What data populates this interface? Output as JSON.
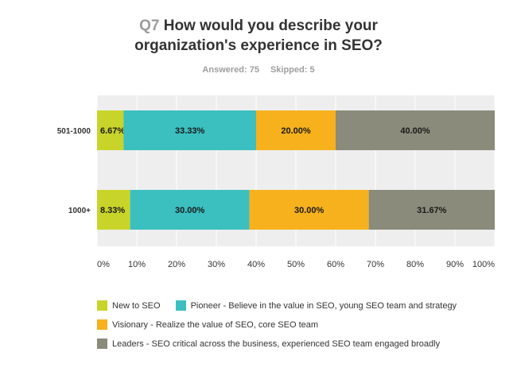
{
  "title": {
    "question_number": "Q7",
    "line1": "How would you describe your",
    "line2": "organization's experience in SEO?"
  },
  "meta": {
    "answered": "Answered: 75",
    "skipped": "Skipped: 5"
  },
  "chart_data": {
    "type": "bar",
    "orientation": "horizontal",
    "stacked": true,
    "categories": [
      "501-1000",
      "1000+"
    ],
    "series": [
      {
        "name": "New to SEO",
        "color": "#c8d42a",
        "values": [
          6.67,
          8.33
        ],
        "labels": [
          "6.67%",
          "8.33%"
        ]
      },
      {
        "name": "Pioneer - Believe in the value in SEO, young SEO team and strategy",
        "color": "#3bbfbf",
        "values": [
          33.33,
          30.0
        ],
        "labels": [
          "33.33%",
          "30.00%"
        ]
      },
      {
        "name": "Visionary - Realize the value of SEO, core SEO team",
        "color": "#f6b11d",
        "values": [
          20.0,
          30.0
        ],
        "labels": [
          "20.00%",
          "30.00%"
        ]
      },
      {
        "name": "Leaders - SEO critical across the business, experienced SEO team engaged broadly",
        "color": "#8a8b7a",
        "values": [
          40.0,
          31.67
        ],
        "labels": [
          "40.00%",
          "31.67%"
        ]
      }
    ],
    "xlim": [
      0,
      100
    ],
    "xticks": [
      "0%",
      "10%",
      "20%",
      "30%",
      "40%",
      "50%",
      "60%",
      "70%",
      "80%",
      "90%",
      "100%"
    ],
    "background": "#eeeeee",
    "legend_position": "bottom"
  }
}
